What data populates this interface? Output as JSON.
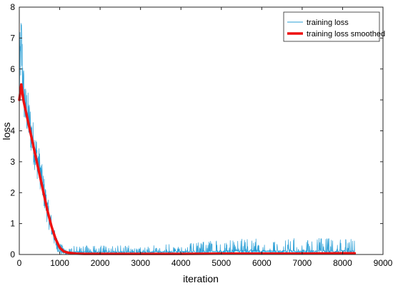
{
  "chart_data": {
    "type": "line",
    "xlabel": "iteration",
    "ylabel": "loss",
    "xlim": [
      0,
      9000
    ],
    "ylim": [
      0,
      8
    ],
    "xticks": [
      0,
      1000,
      2000,
      3000,
      4000,
      5000,
      6000,
      7000,
      8000,
      9000
    ],
    "yticks": [
      0,
      1,
      2,
      3,
      4,
      5,
      6,
      7,
      8
    ],
    "grid": false,
    "legend_position": "top-right",
    "series": [
      {
        "name": "training loss",
        "color": "#2a9fd6",
        "style": "thin-noisy",
        "x": [
          0,
          50,
          100,
          150,
          200,
          300,
          400,
          500,
          600,
          700,
          800,
          900,
          1000,
          1100,
          1200,
          1300,
          1500,
          2000,
          3000,
          4000,
          5000,
          5500,
          6000,
          7000,
          8000,
          8300
        ],
        "y": [
          5.5,
          6.9,
          5.4,
          4.7,
          4.6,
          3.9,
          3.3,
          2.8,
          2.1,
          1.4,
          0.9,
          0.4,
          0.2,
          0.1,
          0.05,
          0.05,
          0.05,
          0.05,
          0.05,
          0.05,
          0.05,
          0.05,
          0.05,
          0.05,
          0.05,
          0.05
        ],
        "noise_amplitude": [
          1.3,
          1.0,
          0.9,
          0.8,
          0.8,
          0.7,
          0.7,
          0.6,
          0.55,
          0.45,
          0.35,
          0.25,
          0.2,
          0.15,
          0.15,
          0.15,
          0.15,
          0.15,
          0.15,
          0.2,
          0.25,
          0.3,
          0.3,
          0.3,
          0.3,
          0.3
        ]
      },
      {
        "name": "training loss smoothed",
        "color": "#ee1111",
        "style": "thick",
        "x": [
          0,
          50,
          100,
          200,
          300,
          400,
          500,
          600,
          700,
          800,
          900,
          1000,
          1100,
          1200,
          1400,
          1600,
          2000,
          3000,
          4000,
          5000,
          6000,
          7000,
          8000,
          8300
        ],
        "y": [
          5.0,
          5.5,
          5.0,
          4.4,
          3.8,
          3.2,
          2.6,
          2.0,
          1.4,
          0.9,
          0.5,
          0.22,
          0.1,
          0.06,
          0.03,
          0.02,
          0.02,
          0.02,
          0.02,
          0.03,
          0.03,
          0.03,
          0.04,
          0.04
        ]
      }
    ]
  }
}
